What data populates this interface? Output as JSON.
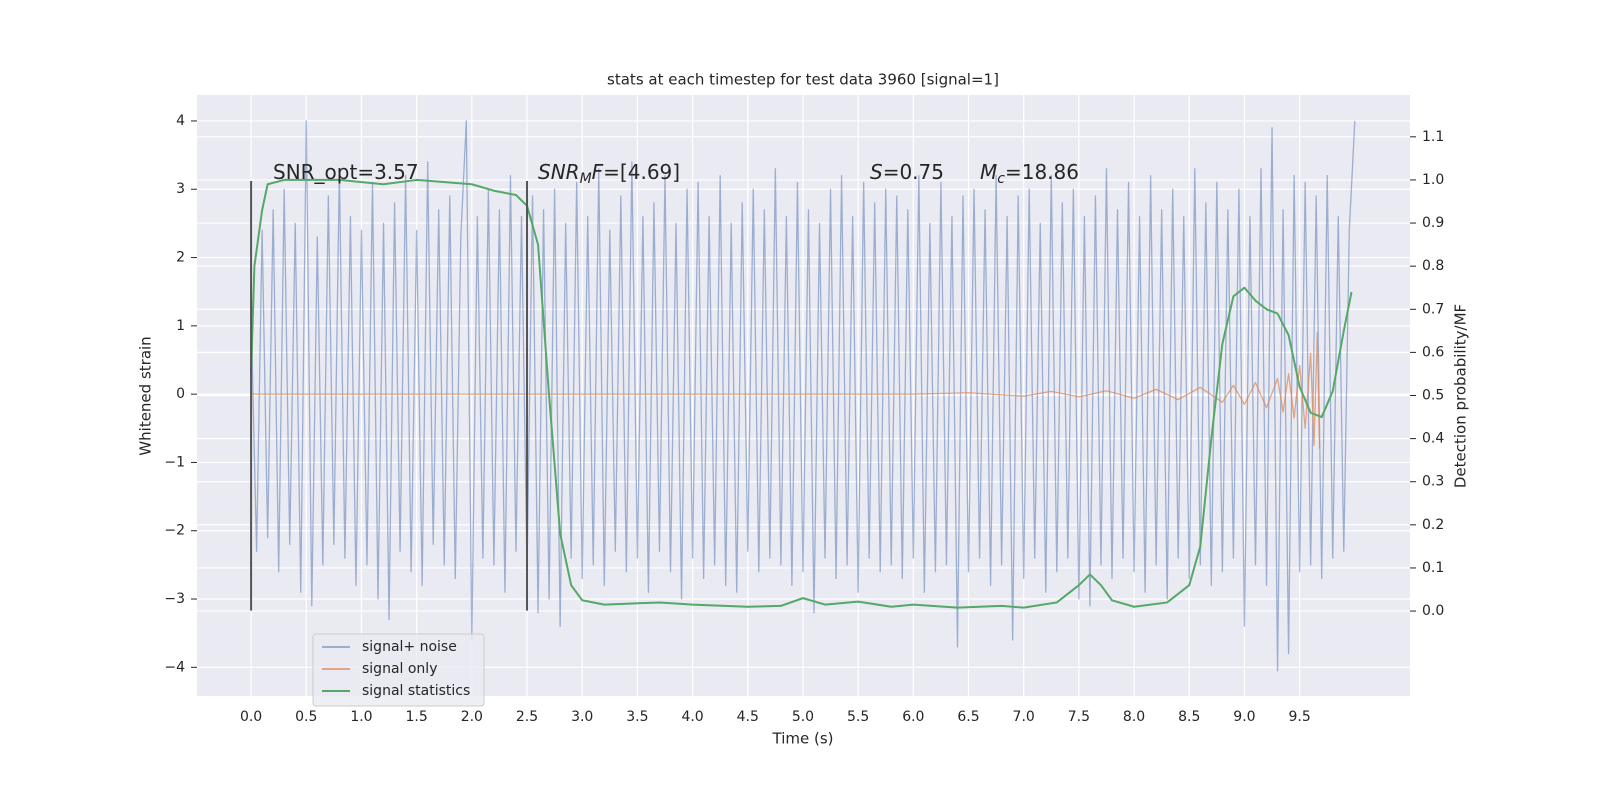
{
  "chart_data": {
    "type": "line",
    "title": "stats at each timestep for test data 3960 [signal=1]",
    "xlabel": "Time (s)",
    "ylabel": "Whitened strain",
    "y2label": "Detection probability/MF",
    "xlim": [
      -0.49,
      10.5
    ],
    "ylim": [
      -4.42,
      4.38
    ],
    "y2lim": [
      -0.197,
      1.197
    ],
    "xticks": [
      {
        "value": 0,
        "label": "0.0"
      },
      0.5,
      {
        "value": 1,
        "label": "1.0"
      },
      1.5,
      {
        "value": 2,
        "label": "2.0"
      },
      2.5,
      {
        "value": 3,
        "label": "3.0"
      },
      3.5,
      {
        "value": 4,
        "label": "4.0"
      },
      4.5,
      {
        "value": 5,
        "label": "5.0"
      },
      5.5,
      {
        "value": 6,
        "label": "6.0"
      },
      6.5,
      {
        "value": 7,
        "label": "7.0"
      },
      7.5,
      {
        "value": 8,
        "label": "8.0"
      },
      8.5,
      {
        "value": 9,
        "label": "9.0"
      },
      9.5
    ],
    "yticks": [
      {
        "value": -4,
        "label": "−4"
      },
      {
        "value": -3,
        "label": "−3"
      },
      {
        "value": -2,
        "label": "−2"
      },
      {
        "value": -1,
        "label": "−1"
      },
      0,
      1,
      2,
      3,
      4
    ],
    "y2ticks": [
      {
        "value": 0,
        "label": "0.0"
      },
      0.1,
      0.2,
      0.3,
      0.4,
      0.5,
      0.6,
      0.7,
      0.8,
      0.9,
      {
        "value": 1,
        "label": "1.0"
      },
      1.1
    ],
    "grid": true,
    "legend": "lower left",
    "series": [
      {
        "name": "signal+ noise",
        "color": "#4c72b0",
        "opacity": 0.5,
        "x": [
          0,
          0.05,
          0.1,
          0.15,
          0.2,
          0.25,
          0.3,
          0.35,
          0.4,
          0.45,
          0.5,
          0.55,
          0.6,
          0.65,
          0.7,
          0.75,
          0.8,
          0.85,
          0.9,
          0.95,
          1,
          1.05,
          1.1,
          1.15,
          1.2,
          1.25,
          1.3,
          1.35,
          1.4,
          1.45,
          1.5,
          1.55,
          1.6,
          1.65,
          1.7,
          1.75,
          1.8,
          1.85,
          1.9,
          1.95,
          2,
          2.05,
          2.1,
          2.15,
          2.2,
          2.25,
          2.3,
          2.35,
          2.4,
          2.45,
          2.5,
          2.55,
          2.6,
          2.65,
          2.7,
          2.75,
          2.8,
          2.85,
          2.9,
          2.95,
          3,
          3.05,
          3.1,
          3.15,
          3.2,
          3.25,
          3.3,
          3.35,
          3.4,
          3.45,
          3.5,
          3.55,
          3.6,
          3.65,
          3.7,
          3.75,
          3.8,
          3.85,
          3.9,
          3.95,
          4,
          4.05,
          4.1,
          4.15,
          4.2,
          4.25,
          4.3,
          4.35,
          4.4,
          4.45,
          4.5,
          4.55,
          4.6,
          4.65,
          4.7,
          4.75,
          4.8,
          4.85,
          4.9,
          4.95,
          5,
          5.05,
          5.1,
          5.15,
          5.2,
          5.25,
          5.3,
          5.35,
          5.4,
          5.45,
          5.5,
          5.55,
          5.6,
          5.65,
          5.7,
          5.75,
          5.8,
          5.85,
          5.9,
          5.95,
          6,
          6.05,
          6.1,
          6.15,
          6.2,
          6.25,
          6.3,
          6.35,
          6.4,
          6.45,
          6.5,
          6.55,
          6.6,
          6.65,
          6.7,
          6.75,
          6.8,
          6.85,
          6.9,
          6.95,
          7,
          7.05,
          7.1,
          7.15,
          7.2,
          7.25,
          7.3,
          7.35,
          7.4,
          7.45,
          7.5,
          7.55,
          7.6,
          7.65,
          7.7,
          7.75,
          7.8,
          7.85,
          7.9,
          7.95,
          8,
          8.05,
          8.1,
          8.15,
          8.2,
          8.25,
          8.3,
          8.35,
          8.4,
          8.45,
          8.5,
          8.55,
          8.6,
          8.65,
          8.7,
          8.75,
          8.8,
          8.85,
          8.9,
          8.95,
          9,
          9.05,
          9.1,
          9.15,
          9.2,
          9.25,
          9.3,
          9.35,
          9.4,
          9.45,
          9.5,
          9.55,
          9.6,
          9.65,
          9.7,
          9.75,
          9.8,
          9.85,
          9.9,
          9.95,
          10
        ],
        "values": [
          1.2,
          -2.3,
          2.4,
          -2.1,
          2.7,
          -2.6,
          3.0,
          -2.2,
          2.5,
          -2.9,
          4.0,
          -3.1,
          2.3,
          -2.5,
          2.9,
          -2.2,
          3.3,
          -2.4,
          2.6,
          -2.8,
          2.4,
          -2.5,
          3.1,
          -3.0,
          2.5,
          -3.3,
          2.8,
          -2.3,
          3.2,
          -2.6,
          2.4,
          -2.8,
          3.4,
          -2.2,
          2.7,
          -2.5,
          2.9,
          -2.7,
          2.3,
          4.0,
          -3.6,
          2.6,
          -2.4,
          3.0,
          -2.5,
          2.7,
          -2.9,
          3.2,
          -2.3,
          2.6,
          -2.6,
          2.9,
          -3.2,
          2.7,
          -3.0,
          3.0,
          -3.4,
          2.5,
          -2.4,
          3.1,
          -2.7,
          2.6,
          -2.5,
          3.3,
          -2.8,
          2.4,
          -2.3,
          2.9,
          -2.6,
          3.4,
          -2.4,
          2.6,
          -2.9,
          2.8,
          -2.3,
          3.2,
          -2.6,
          2.5,
          -3.0,
          3.0,
          -2.4,
          3.1,
          -2.7,
          2.6,
          -2.5,
          3.2,
          -2.8,
          2.5,
          -2.9,
          2.8,
          -2.3,
          3.0,
          -2.6,
          2.7,
          -2.4,
          3.3,
          -2.5,
          2.6,
          -2.8,
          3.1,
          -2.6,
          2.7,
          -3.2,
          2.5,
          -2.4,
          3.0,
          -2.7,
          3.2,
          -2.5,
          2.6,
          -2.9,
          3.1,
          -2.4,
          2.8,
          -2.6,
          3.0,
          -2.5,
          2.9,
          -2.7,
          2.7,
          -2.4,
          3.2,
          -2.9,
          2.5,
          -2.6,
          3.1,
          -2.5,
          2.6,
          -3.7,
          2.9,
          -2.6,
          3.0,
          -2.4,
          2.7,
          -2.8,
          3.2,
          -2.5,
          2.6,
          -3.6,
          2.9,
          -2.7,
          3.0,
          -2.4,
          2.5,
          -2.9,
          3.2,
          -2.6,
          2.8,
          -2.4,
          3.0,
          -3.0,
          2.6,
          -3.1,
          2.9,
          -2.5,
          3.3,
          -2.7,
          2.7,
          -2.4,
          3.1,
          -2.6,
          2.6,
          -2.9,
          3.2,
          -2.5,
          2.7,
          -3.0,
          3.0,
          -2.4,
          2.6,
          -2.7,
          3.3,
          -2.5,
          2.8,
          -2.8,
          3.1,
          -2.6,
          2.7,
          -2.4,
          3.0,
          -3.4,
          2.6,
          -2.5,
          3.3,
          -2.8,
          3.9,
          -4.05,
          2.7,
          -3.8,
          3.2,
          -2.6,
          3.1,
          -2.5,
          2.9,
          -2.7,
          3.2,
          -2.4,
          2.6,
          -2.3,
          2.4,
          4.0
        ]
      },
      {
        "name": "signal only",
        "color": "#dd8452",
        "opacity": 0.7,
        "x": [
          0,
          6,
          6.5,
          7,
          7.25,
          7.5,
          7.75,
          8,
          8.2,
          8.4,
          8.6,
          8.8,
          8.9,
          9,
          9.1,
          9.2,
          9.3,
          9.35,
          9.4,
          9.45,
          9.5,
          9.55,
          9.6,
          9.63,
          9.66,
          9.68
        ],
        "values": [
          0,
          0,
          0.02,
          -0.03,
          0.04,
          -0.04,
          0.05,
          -0.06,
          0.07,
          -0.08,
          0.1,
          -0.12,
          0.13,
          -0.15,
          0.17,
          -0.2,
          0.23,
          -0.26,
          0.3,
          -0.35,
          0.42,
          -0.5,
          0.6,
          -0.75,
          0.9,
          -0.8
        ]
      },
      {
        "name": "signal statistics",
        "color": "#55a868",
        "opacity": 1,
        "axis": "y2",
        "x": [
          0,
          0.03,
          0.1,
          0.15,
          0.3,
          0.5,
          0.8,
          1.2,
          1.5,
          2,
          2.2,
          2.4,
          2.5,
          2.6,
          2.7,
          2.8,
          2.9,
          3,
          3.2,
          3.5,
          3.7,
          4,
          4.5,
          4.8,
          5,
          5.2,
          5.5,
          5.8,
          6,
          6.4,
          6.8,
          7,
          7.3,
          7.5,
          7.6,
          7.7,
          7.8,
          8,
          8.3,
          8.5,
          8.6,
          8.7,
          8.8,
          8.9,
          9,
          9.1,
          9.2,
          9.3,
          9.4,
          9.5,
          9.6,
          9.7,
          9.8,
          9.9,
          9.97
        ],
        "values": [
          0.55,
          0.8,
          0.93,
          0.99,
          1.0,
          1.0,
          1.0,
          0.99,
          1.0,
          0.99,
          0.975,
          0.965,
          0.94,
          0.85,
          0.5,
          0.18,
          0.06,
          0.025,
          0.015,
          0.018,
          0.02,
          0.015,
          0.01,
          0.012,
          0.03,
          0.015,
          0.022,
          0.01,
          0.015,
          0.008,
          0.012,
          0.008,
          0.02,
          0.06,
          0.085,
          0.06,
          0.025,
          0.01,
          0.02,
          0.06,
          0.15,
          0.4,
          0.62,
          0.73,
          0.75,
          0.72,
          0.7,
          0.69,
          0.64,
          0.52,
          0.46,
          0.45,
          0.51,
          0.65,
          0.74
        ]
      }
    ],
    "vlines": [
      {
        "x": 0,
        "ymin": -3.17,
        "ymax": 3.12,
        "color": "#555555"
      },
      {
        "x": 2.5,
        "ymin": -3.17,
        "ymax": 3.12,
        "color": "#555555"
      }
    ],
    "annotations": [
      {
        "parts": [
          {
            "text": "SNR_opt=3.57",
            "style": "roman"
          }
        ]
      },
      {
        "parts": [
          {
            "text": "SNR",
            "style": "italic"
          },
          {
            "text": "M",
            "style": "sub"
          },
          {
            "text": "F",
            "style": "italic"
          },
          {
            "text": "=[4.69]",
            "style": "roman"
          }
        ]
      },
      {
        "parts": [
          {
            "text": "S",
            "style": "italic"
          },
          {
            "text": "=0.75",
            "style": "roman"
          }
        ]
      },
      {
        "parts": [
          {
            "text": "M",
            "style": "italic"
          },
          {
            "text": "c",
            "style": "sub"
          },
          {
            "text": "=18.86",
            "style": "roman"
          }
        ]
      }
    ]
  }
}
